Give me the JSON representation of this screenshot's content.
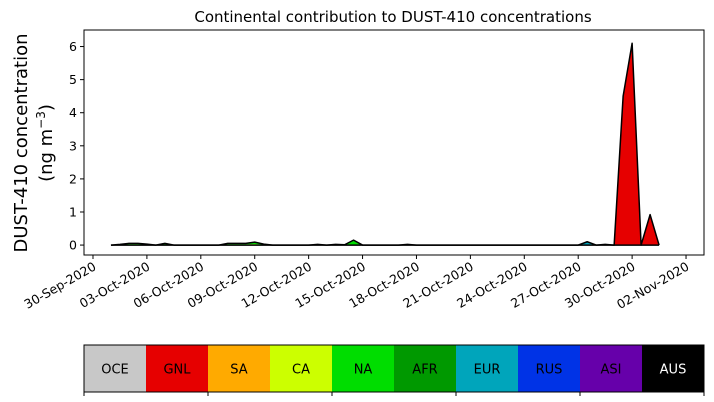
{
  "chart_data": {
    "type": "area",
    "title": "Continental contribution to DUST-410 concentrations",
    "ylabel_line1": "DUST-410 concentration",
    "ylabel_line2": "(ng m",
    "ylabel_exp": "−3",
    "ylabel_close": ")",
    "xlabel": "",
    "ylim": [
      -0.3,
      6.5
    ],
    "yticks": [
      0,
      1,
      2,
      3,
      4,
      5,
      6
    ],
    "xlim": [
      "2020-09-29T12:00",
      "2020-11-03T00:00"
    ],
    "xticks": [
      "30-Sep-2020",
      "03-Oct-2020",
      "06-Oct-2020",
      "09-Oct-2020",
      "12-Oct-2020",
      "15-Oct-2020",
      "18-Oct-2020",
      "21-Oct-2020",
      "24-Oct-2020",
      "27-Oct-2020",
      "30-Oct-2020",
      "02-Nov-2020"
    ],
    "xtick_dates": [
      "2020-09-30",
      "2020-10-03",
      "2020-10-06",
      "2020-10-09",
      "2020-10-12",
      "2020-10-15",
      "2020-10-18",
      "2020-10-21",
      "2020-10-24",
      "2020-10-27",
      "2020-10-30",
      "2020-11-02"
    ],
    "grid": false,
    "dates": [
      "2020-10-01",
      "2020-10-01T12:00",
      "2020-10-02",
      "2020-10-02T12:00",
      "2020-10-03",
      "2020-10-03T12:00",
      "2020-10-04",
      "2020-10-04T12:00",
      "2020-10-05",
      "2020-10-05T12:00",
      "2020-10-06",
      "2020-10-06T12:00",
      "2020-10-07",
      "2020-10-07T12:00",
      "2020-10-08",
      "2020-10-08T12:00",
      "2020-10-09",
      "2020-10-09T12:00",
      "2020-10-10",
      "2020-10-10T12:00",
      "2020-10-11",
      "2020-10-11T12:00",
      "2020-10-12",
      "2020-10-12T12:00",
      "2020-10-13",
      "2020-10-13T12:00",
      "2020-10-14",
      "2020-10-14T12:00",
      "2020-10-15",
      "2020-10-15T12:00",
      "2020-10-16",
      "2020-10-16T12:00",
      "2020-10-17",
      "2020-10-17T12:00",
      "2020-10-18",
      "2020-10-18T12:00",
      "2020-10-19",
      "2020-10-19T12:00",
      "2020-10-20",
      "2020-10-20T12:00",
      "2020-10-21",
      "2020-10-21T12:00",
      "2020-10-22",
      "2020-10-22T12:00",
      "2020-10-23",
      "2020-10-23T12:00",
      "2020-10-24",
      "2020-10-24T12:00",
      "2020-10-25",
      "2020-10-25T12:00",
      "2020-10-26",
      "2020-10-26T12:00",
      "2020-10-27",
      "2020-10-27T12:00",
      "2020-10-28",
      "2020-10-28T12:00",
      "2020-10-29",
      "2020-10-29T12:00",
      "2020-10-30",
      "2020-10-30T12:00",
      "2020-10-31",
      "2020-10-31T12:00"
    ],
    "series": [
      {
        "name": "OCE",
        "color": "#c8c8c8",
        "values": [
          0,
          0,
          0,
          0,
          0,
          0,
          0,
          0,
          0,
          0,
          0,
          0,
          0,
          0,
          0,
          0,
          0,
          0,
          0,
          0,
          0,
          0,
          0,
          0,
          0,
          0,
          0,
          0,
          0,
          0,
          0,
          0,
          0,
          0,
          0,
          0,
          0,
          0,
          0,
          0,
          0,
          0,
          0,
          0,
          0,
          0,
          0,
          0,
          0,
          0,
          0,
          0,
          0,
          0,
          0,
          0,
          0,
          0,
          0,
          0,
          0,
          0
        ]
      },
      {
        "name": "GNL",
        "color": "#e60000",
        "values": [
          0,
          0,
          0,
          0,
          0,
          0,
          0,
          0,
          0,
          0,
          0,
          0,
          0,
          0,
          0,
          0,
          0,
          0,
          0,
          0,
          0,
          0,
          0,
          0,
          0,
          0,
          0,
          0,
          0,
          0,
          0,
          0,
          0,
          0,
          0,
          0,
          0,
          0,
          0,
          0,
          0,
          0,
          0,
          0,
          0,
          0,
          0,
          0,
          0,
          0,
          0,
          0,
          0,
          0,
          0,
          0,
          0,
          4.5,
          6.1,
          0,
          0.92,
          0
        ]
      },
      {
        "name": "SA",
        "color": "#ffaa00",
        "values": [
          0,
          0,
          0,
          0,
          0,
          0,
          0,
          0,
          0,
          0,
          0,
          0,
          0,
          0,
          0,
          0,
          0,
          0,
          0,
          0,
          0,
          0,
          0,
          0,
          0,
          0,
          0,
          0,
          0,
          0,
          0,
          0,
          0,
          0,
          0,
          0,
          0,
          0,
          0,
          0,
          0,
          0,
          0,
          0,
          0,
          0,
          0,
          0,
          0,
          0,
          0,
          0,
          0,
          0,
          0,
          0,
          0,
          0,
          0,
          0,
          0,
          0
        ]
      },
      {
        "name": "CA",
        "color": "#ccff00",
        "values": [
          0,
          0.01,
          0.02,
          0.02,
          0.01,
          0,
          0.01,
          0,
          0,
          0,
          0,
          0,
          0,
          0.02,
          0.02,
          0.02,
          0.03,
          0.01,
          0,
          0,
          0,
          0,
          0,
          0,
          0,
          0,
          0,
          0.01,
          0,
          0,
          0,
          0,
          0,
          0,
          0,
          0,
          0,
          0,
          0,
          0,
          0,
          0,
          0,
          0,
          0,
          0,
          0,
          0,
          0,
          0,
          0,
          0,
          0,
          0,
          0,
          0,
          0,
          0,
          0,
          0,
          0,
          0
        ]
      },
      {
        "name": "NA",
        "color": "#00dd00",
        "values": [
          0,
          0.01,
          0.03,
          0.03,
          0.02,
          0,
          0.04,
          0,
          0,
          0,
          0,
          0,
          0,
          0.03,
          0.03,
          0.03,
          0.06,
          0.02,
          0,
          0,
          0,
          0,
          0,
          0.02,
          0,
          0.02,
          0.01,
          0.14,
          0,
          0,
          0,
          0,
          0,
          0.02,
          0,
          0,
          0,
          0,
          0,
          0,
          0,
          0,
          0,
          0,
          0,
          0,
          0,
          0,
          0,
          0,
          0,
          0,
          0,
          0,
          0,
          0,
          0,
          0,
          0,
          0,
          0,
          0
        ]
      },
      {
        "name": "AFR",
        "color": "#009900",
        "values": [
          0,
          0,
          0,
          0,
          0,
          0,
          0,
          0,
          0,
          0,
          0,
          0,
          0,
          0,
          0,
          0,
          0,
          0,
          0,
          0,
          0,
          0,
          0,
          0,
          0,
          0,
          0,
          0,
          0,
          0,
          0,
          0,
          0,
          0,
          0,
          0,
          0,
          0,
          0,
          0,
          0,
          0,
          0,
          0,
          0,
          0,
          0,
          0,
          0,
          0,
          0,
          0,
          0,
          0,
          0,
          0,
          0,
          0,
          0,
          0,
          0,
          0
        ]
      },
      {
        "name": "EUR",
        "color": "#00a5bb",
        "values": [
          0,
          0,
          0,
          0,
          0,
          0,
          0,
          0,
          0,
          0,
          0,
          0,
          0,
          0,
          0,
          0,
          0,
          0,
          0,
          0,
          0,
          0,
          0,
          0,
          0,
          0,
          0,
          0,
          0,
          0,
          0,
          0,
          0,
          0,
          0,
          0,
          0,
          0,
          0,
          0,
          0,
          0,
          0,
          0,
          0,
          0,
          0,
          0,
          0,
          0,
          0,
          0,
          0,
          0.08,
          0,
          0.02,
          0,
          0,
          0,
          0,
          0,
          0
        ]
      },
      {
        "name": "RUS",
        "color": "#0033e6",
        "values": [
          0,
          0,
          0,
          0,
          0,
          0,
          0,
          0,
          0,
          0,
          0,
          0,
          0,
          0,
          0,
          0,
          0,
          0,
          0,
          0,
          0,
          0,
          0,
          0,
          0,
          0,
          0,
          0,
          0,
          0,
          0,
          0,
          0,
          0,
          0,
          0,
          0,
          0,
          0,
          0,
          0,
          0,
          0,
          0,
          0,
          0,
          0,
          0,
          0,
          0,
          0,
          0,
          0,
          0.02,
          0,
          0,
          0,
          0,
          0,
          0,
          0,
          0
        ]
      },
      {
        "name": "ASI",
        "color": "#6600aa",
        "values": [
          0,
          0,
          0,
          0,
          0,
          0,
          0,
          0,
          0,
          0,
          0,
          0,
          0,
          0,
          0,
          0,
          0,
          0,
          0,
          0,
          0,
          0,
          0,
          0,
          0,
          0,
          0,
          0,
          0,
          0,
          0,
          0,
          0,
          0,
          0,
          0,
          0,
          0,
          0,
          0,
          0,
          0,
          0,
          0,
          0,
          0,
          0,
          0,
          0,
          0,
          0,
          0,
          0,
          0,
          0,
          0,
          0,
          0,
          0,
          0,
          0,
          0
        ]
      },
      {
        "name": "AUS",
        "color": "#000000",
        "values": [
          0,
          0,
          0,
          0,
          0,
          0,
          0,
          0,
          0,
          0,
          0,
          0,
          0,
          0,
          0,
          0,
          0,
          0,
          0,
          0,
          0,
          0,
          0,
          0,
          0,
          0,
          0,
          0,
          0,
          0,
          0,
          0,
          0,
          0,
          0,
          0,
          0,
          0,
          0,
          0,
          0,
          0,
          0,
          0,
          0,
          0,
          0,
          0,
          0,
          0,
          0,
          0,
          0,
          0,
          0,
          0,
          0,
          0,
          0,
          0,
          0,
          0
        ]
      }
    ],
    "legend": {
      "placement": "bottom",
      "entries": [
        {
          "label": "OCE",
          "color": "#c8c8c8",
          "text_color": "#000000"
        },
        {
          "label": "GNL",
          "color": "#e60000",
          "text_color": "#000000"
        },
        {
          "label": "SA",
          "color": "#ffaa00",
          "text_color": "#000000"
        },
        {
          "label": "CA",
          "color": "#ccff00",
          "text_color": "#000000"
        },
        {
          "label": "NA",
          "color": "#00dd00",
          "text_color": "#000000"
        },
        {
          "label": "AFR",
          "color": "#009900",
          "text_color": "#000000"
        },
        {
          "label": "EUR",
          "color": "#00a5bb",
          "text_color": "#000000"
        },
        {
          "label": "RUS",
          "color": "#0033e6",
          "text_color": "#000000"
        },
        {
          "label": "ASI",
          "color": "#6600aa",
          "text_color": "#000000"
        },
        {
          "label": "AUS",
          "color": "#000000",
          "text_color": "#ffffff"
        }
      ]
    }
  }
}
